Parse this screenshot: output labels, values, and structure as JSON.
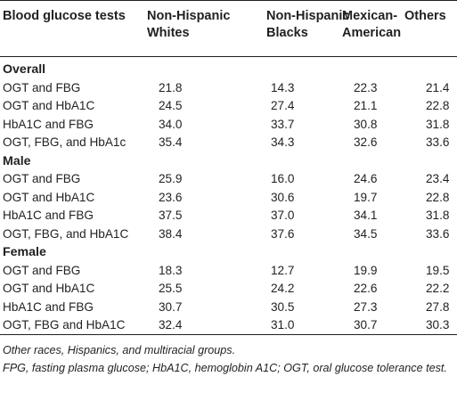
{
  "table": {
    "headers": [
      "Blood glucose tests",
      "Non-Hispanic Whites",
      "Non-Hispanic Blacks",
      "Mexican-American",
      "Others"
    ],
    "header_lines": [
      [
        "Blood glucose tests"
      ],
      [
        "Non-Hispanic",
        "Whites"
      ],
      [
        "Non-Hispanic",
        "Blacks"
      ],
      [
        "Mexican-",
        "American"
      ],
      [
        "Others"
      ]
    ],
    "groups": [
      {
        "name": "Overall",
        "rows": [
          {
            "label": "OGT and FBG",
            "values": [
              "21.8",
              "14.3",
              "22.3",
              "21.4"
            ]
          },
          {
            "label": "OGT and HbA1C",
            "values": [
              "24.5",
              "27.4",
              "21.1",
              "22.8"
            ]
          },
          {
            "label": "HbA1C and FBG",
            "values": [
              "34.0",
              "33.7",
              "30.8",
              "31.8"
            ]
          },
          {
            "label": "OGT, FBG, and HbA1c",
            "values": [
              "35.4",
              "34.3",
              "32.6",
              "33.6"
            ]
          }
        ]
      },
      {
        "name": "Male",
        "rows": [
          {
            "label": "OGT and FBG",
            "values": [
              "25.9",
              "16.0",
              "24.6",
              "23.4"
            ]
          },
          {
            "label": "OGT and HbA1C",
            "values": [
              "23.6",
              "30.6",
              "19.7",
              "22.8"
            ]
          },
          {
            "label": "HbA1C and FBG",
            "values": [
              "37.5",
              "37.0",
              "34.1",
              "31.8"
            ]
          },
          {
            "label": "OGT, FBG, and HbA1C",
            "values": [
              "38.4",
              "37.6",
              "34.5",
              "33.6"
            ]
          }
        ]
      },
      {
        "name": "Female",
        "rows": [
          {
            "label": "OGT and FBG",
            "values": [
              "18.3",
              "12.7",
              "19.9",
              "19.5"
            ]
          },
          {
            "label": "OGT and HbA1C",
            "values": [
              "25.5",
              "24.2",
              "22.6",
              "22.2"
            ]
          },
          {
            "label": "HbA1C and FBG",
            "values": [
              "30.7",
              "30.5",
              "27.3",
              "27.8"
            ]
          },
          {
            "label": "OGT, FBG and HbA1C",
            "values": [
              "32.4",
              "31.0",
              "30.7",
              "30.3"
            ]
          }
        ]
      }
    ]
  },
  "notes": [
    "Other races, Hispanics, and multiracial groups.",
    "FPG, fasting plasma glucose; HbA1C, hemoglobin A1C; OGT, oral glucose tolerance test."
  ]
}
